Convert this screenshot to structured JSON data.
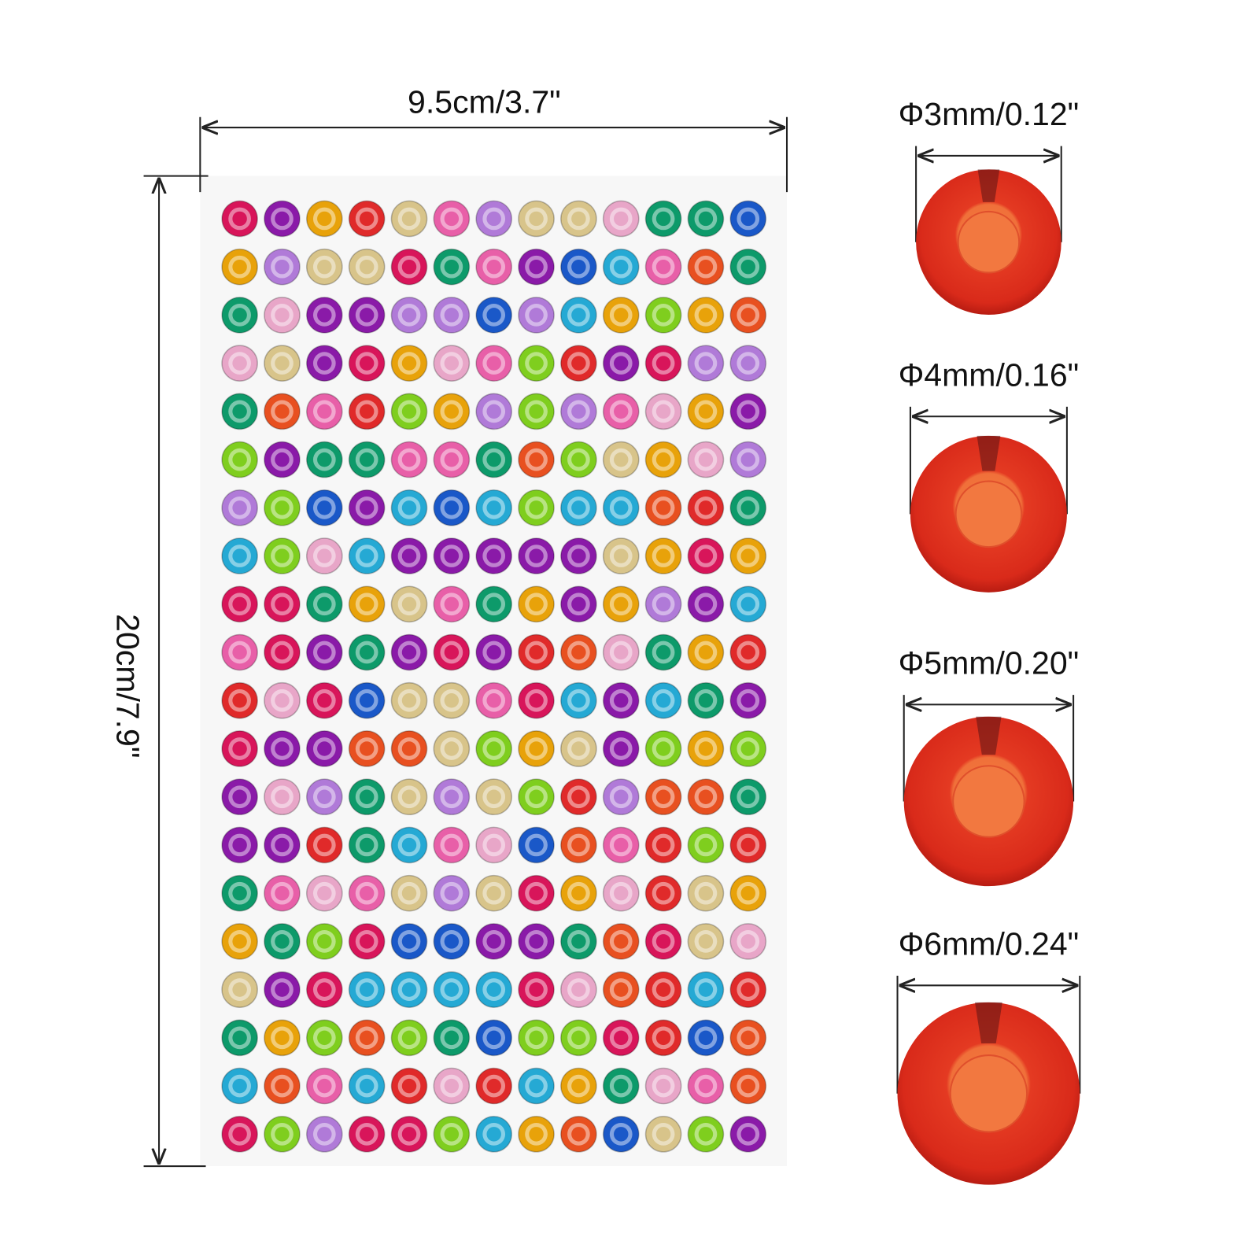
{
  "width_label": "9.5cm/3.7\"",
  "height_label": "20cm/7.9\"",
  "sizes": [
    "Φ3mm/0.12\"",
    "Φ4mm/0.16\"",
    "Φ5mm/0.20\"",
    "Φ6mm/0.24\""
  ]
}
